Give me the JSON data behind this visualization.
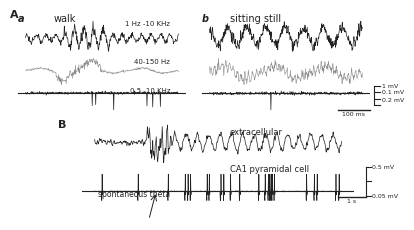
{
  "title": "",
  "background_color": "#ffffff",
  "panel_A_label": "A",
  "panel_a_label": "a",
  "panel_b_label": "b",
  "panel_B_label": "B",
  "walk_label": "walk",
  "sitting_label": "sitting still",
  "extracellular_label": "extracellular",
  "ca1_label": "CA1 pyramidal cell",
  "theta_label": "spontaneous theta",
  "freq1_label": "1 Hz -10 KHz",
  "freq2_label": "40-150 Hz",
  "freq3_label": "0.5 -10 KHz",
  "scalebar_top_label": "1 mV",
  "scalebar_mid_label": "0.1 mV",
  "scalebar_bot_label": "0.2 mV",
  "scalebar_time_label": "100 ms",
  "scalebar_B_top": "0.5 mV",
  "scalebar_B_bot": "0.05 mV",
  "scalebar_B_time": "1 s",
  "text_color": "#222222",
  "line_color_dark": "#222222",
  "line_color_gray": "#888888"
}
